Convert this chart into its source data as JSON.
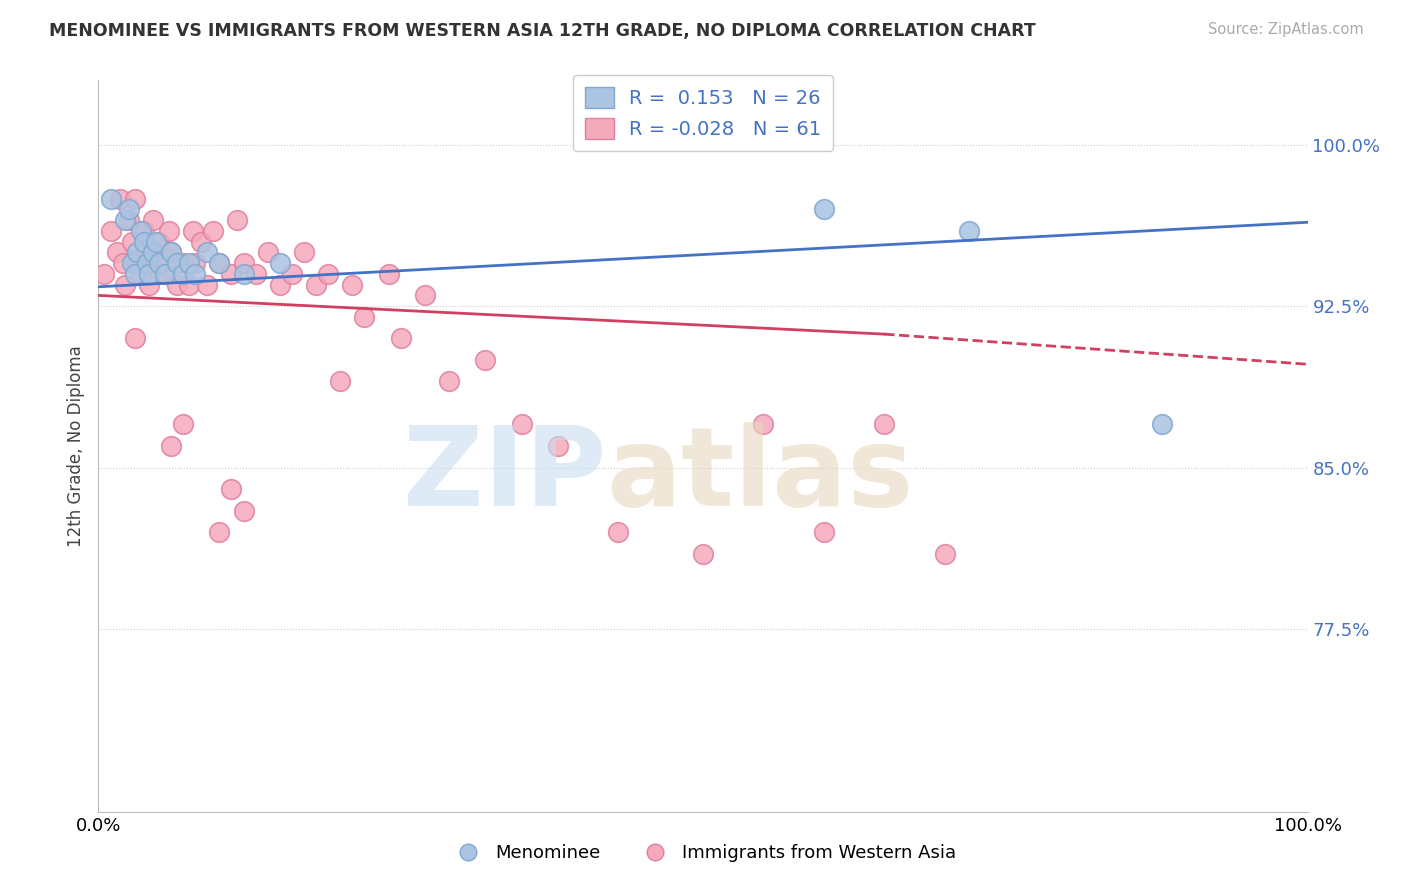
{
  "title": "MENOMINEE VS IMMIGRANTS FROM WESTERN ASIA 12TH GRADE, NO DIPLOMA CORRELATION CHART",
  "source": "Source: ZipAtlas.com",
  "ylabel": "12th Grade, No Diploma",
  "ytick_labels": [
    "77.5%",
    "85.0%",
    "92.5%",
    "100.0%"
  ],
  "ytick_values": [
    0.775,
    0.85,
    0.925,
    1.0
  ],
  "xlim": [
    0.0,
    1.0
  ],
  "ylim": [
    0.69,
    1.03
  ],
  "legend_blue_r": "0.153",
  "legend_blue_n": "26",
  "legend_pink_r": "-0.028",
  "legend_pink_n": "61",
  "blue_color": "#aac4e2",
  "pink_color": "#f5aabb",
  "blue_line_color": "#4472c4",
  "pink_line_color": "#d04060",
  "menominee_x": [
    0.01,
    0.022,
    0.025,
    0.028,
    0.03,
    0.032,
    0.035,
    0.038,
    0.04,
    0.042,
    0.045,
    0.048,
    0.05,
    0.055,
    0.06,
    0.065,
    0.07,
    0.075,
    0.08,
    0.09,
    0.1,
    0.12,
    0.15,
    0.6,
    0.72,
    0.88
  ],
  "menominee_y": [
    0.975,
    0.965,
    0.97,
    0.945,
    0.94,
    0.95,
    0.96,
    0.955,
    0.945,
    0.94,
    0.95,
    0.955,
    0.945,
    0.94,
    0.95,
    0.945,
    0.94,
    0.945,
    0.94,
    0.95,
    0.945,
    0.94,
    0.945,
    0.97,
    0.96,
    0.87
  ],
  "immigrants_x": [
    0.005,
    0.01,
    0.015,
    0.018,
    0.02,
    0.022,
    0.025,
    0.028,
    0.03,
    0.032,
    0.035,
    0.038,
    0.04,
    0.042,
    0.045,
    0.048,
    0.05,
    0.055,
    0.058,
    0.06,
    0.065,
    0.07,
    0.075,
    0.078,
    0.08,
    0.085,
    0.09,
    0.095,
    0.1,
    0.11,
    0.115,
    0.12,
    0.13,
    0.14,
    0.15,
    0.16,
    0.17,
    0.18,
    0.19,
    0.2,
    0.21,
    0.22,
    0.24,
    0.25,
    0.27,
    0.29,
    0.32,
    0.35,
    0.38,
    0.43,
    0.5,
    0.55,
    0.6,
    0.65,
    0.7,
    0.03,
    0.06,
    0.07,
    0.1,
    0.11,
    0.12
  ],
  "immigrants_y": [
    0.94,
    0.96,
    0.95,
    0.975,
    0.945,
    0.935,
    0.965,
    0.955,
    0.975,
    0.945,
    0.94,
    0.96,
    0.95,
    0.935,
    0.965,
    0.945,
    0.955,
    0.94,
    0.96,
    0.95,
    0.935,
    0.945,
    0.935,
    0.96,
    0.945,
    0.955,
    0.935,
    0.96,
    0.945,
    0.94,
    0.965,
    0.945,
    0.94,
    0.95,
    0.935,
    0.94,
    0.95,
    0.935,
    0.94,
    0.89,
    0.935,
    0.92,
    0.94,
    0.91,
    0.93,
    0.89,
    0.9,
    0.87,
    0.86,
    0.82,
    0.81,
    0.87,
    0.82,
    0.87,
    0.81,
    0.91,
    0.86,
    0.87,
    0.82,
    0.84,
    0.83
  ]
}
